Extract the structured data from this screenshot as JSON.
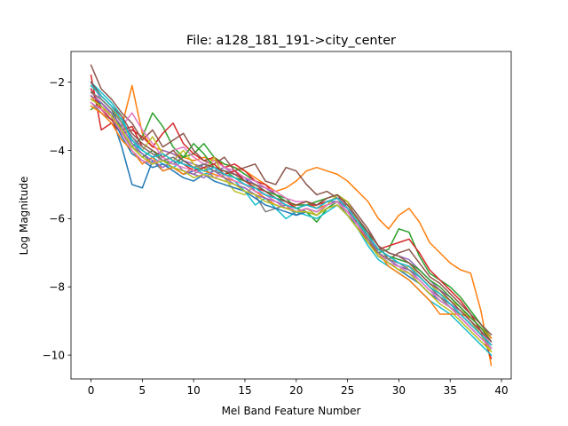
{
  "chart_data": {
    "type": "line",
    "title": "File: a128_181_191->city_center",
    "xlabel": "Mel Band Feature Number",
    "ylabel": "Log Magnitude",
    "xlim": [
      -1.95,
      40.95
    ],
    "ylim": [
      -10.7,
      -1.1
    ],
    "xticks": [
      0,
      5,
      10,
      15,
      20,
      25,
      30,
      35,
      40
    ],
    "xtick_labels": [
      "0",
      "5",
      "10",
      "15",
      "20",
      "25",
      "30",
      "35",
      "40"
    ],
    "yticks": [
      -10,
      -8,
      -6,
      -4,
      -2
    ],
    "ytick_labels": [
      "−10",
      "−8",
      "−6",
      "−4",
      "−2"
    ],
    "grid": false,
    "legend": false,
    "x": [
      0,
      1,
      2,
      3,
      4,
      5,
      6,
      7,
      8,
      9,
      10,
      11,
      12,
      13,
      14,
      15,
      16,
      17,
      18,
      19,
      20,
      21,
      22,
      23,
      24,
      25,
      26,
      27,
      28,
      29,
      30,
      31,
      32,
      33,
      34,
      35,
      36,
      37,
      38,
      39
    ],
    "series": [
      {
        "color": "#1f77b4",
        "values": [
          -2.2,
          -2.7,
          -3.0,
          -3.9,
          -5.0,
          -5.1,
          -4.3,
          -4.6,
          -4.5,
          -4.7,
          -4.6,
          -4.4,
          -4.5,
          -4.6,
          -4.7,
          -4.8,
          -5.2,
          -5.3,
          -5.5,
          -5.6,
          -5.7,
          -5.6,
          -5.6,
          -5.5,
          -5.5,
          -5.8,
          -6.2,
          -6.6,
          -7.1,
          -7.3,
          -7.4,
          -7.6,
          -7.9,
          -8.2,
          -8.4,
          -8.6,
          -8.9,
          -9.2,
          -9.5,
          -9.8
        ]
      },
      {
        "color": "#ff7f0e",
        "values": [
          -2.4,
          -2.8,
          -2.9,
          -3.3,
          -2.1,
          -3.5,
          -3.9,
          -4.0,
          -4.1,
          -4.2,
          -4.3,
          -4.2,
          -4.3,
          -4.4,
          -4.5,
          -4.6,
          -4.8,
          -5.0,
          -5.2,
          -5.1,
          -4.9,
          -4.6,
          -4.5,
          -4.6,
          -4.7,
          -4.9,
          -5.2,
          -5.5,
          -6.0,
          -6.3,
          -5.9,
          -5.7,
          -6.1,
          -6.7,
          -7.0,
          -7.3,
          -7.5,
          -7.6,
          -8.7,
          -10.3
        ]
      },
      {
        "color": "#2ca02c",
        "values": [
          -2.8,
          -2.6,
          -2.9,
          -3.5,
          -3.9,
          -3.6,
          -2.9,
          -3.3,
          -3.9,
          -4.2,
          -4.1,
          -3.8,
          -4.2,
          -4.4,
          -4.5,
          -4.7,
          -4.9,
          -5.1,
          -5.3,
          -5.4,
          -5.7,
          -5.8,
          -6.1,
          -5.7,
          -5.5,
          -5.6,
          -6.0,
          -6.4,
          -7.0,
          -6.9,
          -6.3,
          -6.4,
          -7.1,
          -7.6,
          -7.8,
          -8.0,
          -8.3,
          -8.7,
          -9.1,
          -9.5
        ]
      },
      {
        "color": "#d62728",
        "values": [
          -1.8,
          -3.4,
          -3.2,
          -3.5,
          -3.4,
          -3.6,
          -3.9,
          -3.5,
          -3.2,
          -3.8,
          -4.1,
          -4.3,
          -4.2,
          -4.5,
          -4.4,
          -4.6,
          -4.9,
          -5.0,
          -5.3,
          -5.5,
          -5.6,
          -5.5,
          -5.6,
          -5.4,
          -5.3,
          -5.7,
          -6.1,
          -6.6,
          -6.9,
          -6.8,
          -6.7,
          -6.6,
          -7.0,
          -7.5,
          -7.8,
          -8.1,
          -8.4,
          -8.8,
          -9.3,
          -10.1
        ]
      },
      {
        "color": "#9467bd",
        "values": [
          -2.0,
          -2.5,
          -2.8,
          -3.1,
          -3.6,
          -4.0,
          -4.2,
          -4.0,
          -4.1,
          -4.3,
          -4.4,
          -4.5,
          -4.6,
          -4.5,
          -4.7,
          -4.8,
          -5.0,
          -5.1,
          -5.3,
          -5.5,
          -5.6,
          -5.6,
          -5.7,
          -5.6,
          -5.5,
          -5.7,
          -6.0,
          -6.4,
          -6.8,
          -7.0,
          -7.1,
          -7.2,
          -7.5,
          -7.8,
          -8.1,
          -8.3,
          -8.6,
          -8.9,
          -9.2,
          -9.6
        ]
      },
      {
        "color": "#8c564b",
        "values": [
          -1.5,
          -2.2,
          -2.5,
          -2.9,
          -3.2,
          -3.7,
          -3.4,
          -3.9,
          -3.7,
          -3.5,
          -4.0,
          -4.3,
          -4.4,
          -4.2,
          -4.6,
          -4.5,
          -4.4,
          -4.9,
          -5.0,
          -4.5,
          -4.6,
          -5.0,
          -5.3,
          -5.2,
          -5.4,
          -5.5,
          -5.9,
          -6.3,
          -6.8,
          -7.2,
          -7.0,
          -6.9,
          -7.3,
          -7.7,
          -7.9,
          -8.2,
          -8.5,
          -8.8,
          -9.1,
          -9.4
        ]
      },
      {
        "color": "#e377c2",
        "values": [
          -2.3,
          -2.6,
          -3.0,
          -3.3,
          -2.9,
          -3.4,
          -3.8,
          -4.2,
          -4.0,
          -3.9,
          -4.2,
          -4.4,
          -4.3,
          -4.5,
          -4.6,
          -4.8,
          -4.9,
          -5.1,
          -5.2,
          -5.4,
          -5.5,
          -5.5,
          -5.6,
          -5.5,
          -5.4,
          -5.6,
          -6.0,
          -6.5,
          -6.9,
          -7.1,
          -7.2,
          -7.3,
          -7.6,
          -7.9,
          -8.2,
          -8.5,
          -8.7,
          -9.0,
          -9.3,
          -9.7
        ]
      },
      {
        "color": "#7f7f7f",
        "values": [
          -2.6,
          -2.9,
          -3.1,
          -3.5,
          -3.9,
          -4.1,
          -4.4,
          -4.3,
          -4.5,
          -4.6,
          -4.7,
          -4.5,
          -4.8,
          -4.9,
          -5.0,
          -5.1,
          -5.3,
          -5.8,
          -5.7,
          -5.6,
          -5.9,
          -5.7,
          -5.8,
          -5.6,
          -5.5,
          -5.9,
          -6.3,
          -6.7,
          -7.0,
          -7.3,
          -7.4,
          -7.5,
          -7.7,
          -8.0,
          -8.3,
          -8.6,
          -8.8,
          -9.1,
          -9.4,
          -9.8
        ]
      },
      {
        "color": "#bcbd22",
        "values": [
          -2.1,
          -2.4,
          -2.7,
          -3.2,
          -3.7,
          -4.0,
          -3.6,
          -4.1,
          -4.3,
          -4.0,
          -4.4,
          -4.6,
          -4.2,
          -4.8,
          -5.2,
          -5.3,
          -5.0,
          -5.2,
          -5.4,
          -5.6,
          -5.8,
          -5.7,
          -5.9,
          -5.6,
          -5.3,
          -5.5,
          -6.1,
          -6.5,
          -7.1,
          -7.3,
          -7.5,
          -7.4,
          -7.6,
          -7.9,
          -8.2,
          -8.4,
          -8.6,
          -9.0,
          -9.4,
          -9.9
        ]
      },
      {
        "color": "#17becf",
        "values": [
          -2.0,
          -2.3,
          -2.6,
          -3.0,
          -3.8,
          -4.0,
          -4.2,
          -4.4,
          -4.5,
          -4.3,
          -4.5,
          -4.7,
          -4.6,
          -4.8,
          -4.9,
          -5.2,
          -5.6,
          -5.4,
          -5.7,
          -6.0,
          -5.8,
          -5.9,
          -6.0,
          -5.8,
          -5.6,
          -5.9,
          -6.3,
          -6.8,
          -7.2,
          -7.4,
          -7.6,
          -7.8,
          -8.1,
          -8.4,
          -8.6,
          -8.8,
          -9.1,
          -9.4,
          -9.7,
          -10.0
        ]
      },
      {
        "color": "#1f77b4",
        "values": [
          -2.5,
          -2.7,
          -3.0,
          -3.6,
          -4.1,
          -4.3,
          -4.5,
          -4.4,
          -4.6,
          -4.8,
          -4.9,
          -4.7,
          -4.9,
          -5.0,
          -5.1,
          -5.2,
          -5.4,
          -5.6,
          -5.7,
          -5.8,
          -5.9,
          -5.8,
          -5.9,
          -5.7,
          -5.6,
          -5.9,
          -6.2,
          -6.7,
          -7.1,
          -7.3,
          -7.5,
          -7.7,
          -7.9,
          -8.2,
          -8.4,
          -8.6,
          -8.9,
          -9.2,
          -9.5,
          -9.8
        ]
      },
      {
        "color": "#ff7f0e",
        "values": [
          -2.7,
          -2.9,
          -3.2,
          -3.7,
          -4.0,
          -4.4,
          -4.2,
          -4.6,
          -4.5,
          -4.7,
          -4.5,
          -4.6,
          -4.7,
          -4.8,
          -4.9,
          -5.0,
          -5.2,
          -5.4,
          -5.6,
          -5.7,
          -5.6,
          -5.5,
          -5.7,
          -5.6,
          -5.5,
          -5.8,
          -6.1,
          -6.6,
          -7.0,
          -7.4,
          -7.6,
          -7.8,
          -8.1,
          -8.4,
          -8.8,
          -8.8,
          -8.8,
          -8.9,
          -9.2,
          -9.5
        ]
      },
      {
        "color": "#2ca02c",
        "values": [
          -2.3,
          -2.5,
          -2.8,
          -3.4,
          -3.9,
          -4.2,
          -4.0,
          -4.3,
          -4.4,
          -4.2,
          -3.8,
          -4.1,
          -4.5,
          -4.6,
          -4.8,
          -4.9,
          -5.0,
          -5.2,
          -5.3,
          -5.5,
          -5.6,
          -5.6,
          -5.5,
          -5.4,
          -5.3,
          -5.6,
          -6.0,
          -6.5,
          -6.9,
          -7.1,
          -7.2,
          -7.3,
          -7.5,
          -7.8,
          -8.0,
          -8.3,
          -8.6,
          -8.9,
          -9.2,
          -9.6
        ]
      },
      {
        "color": "#d62728",
        "values": [
          -2.2,
          -2.8,
          -3.1,
          -3.4,
          -3.3,
          -3.9,
          -4.1,
          -4.3,
          -4.2,
          -4.4,
          -4.6,
          -4.5,
          -4.4,
          -4.7,
          -4.6,
          -4.9,
          -5.1,
          -5.2,
          -5.4,
          -5.5,
          -5.7,
          -5.6,
          -5.6,
          -5.5,
          -5.4,
          -5.7,
          -6.2,
          -6.7,
          -7.0,
          -7.2,
          -7.3,
          -7.4,
          -7.7,
          -8.0,
          -8.3,
          -8.5,
          -8.8,
          -9.1,
          -9.4,
          -9.7
        ]
      },
      {
        "color": "#9467bd",
        "values": [
          -2.4,
          -2.6,
          -2.9,
          -3.3,
          -3.8,
          -4.1,
          -4.3,
          -4.5,
          -4.3,
          -4.6,
          -4.7,
          -4.8,
          -4.6,
          -4.8,
          -5.0,
          -5.1,
          -5.3,
          -5.4,
          -5.5,
          -5.7,
          -5.8,
          -5.7,
          -5.8,
          -5.6,
          -5.5,
          -5.8,
          -6.1,
          -6.5,
          -7.0,
          -7.2,
          -7.4,
          -7.5,
          -7.8,
          -8.1,
          -8.3,
          -8.5,
          -8.7,
          -9.0,
          -9.3,
          -9.6
        ]
      },
      {
        "color": "#8c564b",
        "values": [
          -2.0,
          -2.4,
          -2.7,
          -3.0,
          -3.5,
          -3.8,
          -4.0,
          -4.2,
          -4.0,
          -4.3,
          -4.5,
          -4.4,
          -4.5,
          -4.6,
          -4.7,
          -4.9,
          -5.0,
          -5.2,
          -5.4,
          -5.5,
          -5.6,
          -5.5,
          -5.6,
          -5.4,
          -5.3,
          -5.6,
          -6.0,
          -6.4,
          -6.8,
          -7.0,
          -7.1,
          -7.3,
          -7.6,
          -7.9,
          -8.1,
          -8.4,
          -8.7,
          -9.0,
          -9.3,
          -9.6
        ]
      },
      {
        "color": "#e377c2",
        "values": [
          -2.6,
          -2.8,
          -3.0,
          -3.5,
          -4.0,
          -4.3,
          -4.4,
          -4.2,
          -4.4,
          -4.5,
          -4.6,
          -4.7,
          -4.8,
          -4.7,
          -4.9,
          -5.0,
          -5.2,
          -5.3,
          -5.5,
          -5.6,
          -5.8,
          -5.7,
          -5.8,
          -5.6,
          -5.5,
          -5.8,
          -6.2,
          -6.6,
          -7.0,
          -7.3,
          -7.4,
          -7.6,
          -7.8,
          -8.1,
          -8.4,
          -8.6,
          -8.9,
          -9.2,
          -9.5,
          -9.8
        ]
      },
      {
        "color": "#7f7f7f",
        "values": [
          -2.3,
          -2.5,
          -2.8,
          -3.2,
          -3.6,
          -3.9,
          -4.1,
          -4.3,
          -4.2,
          -4.4,
          -4.5,
          -4.4,
          -4.6,
          -4.7,
          -4.8,
          -5.0,
          -5.1,
          -5.3,
          -5.4,
          -5.6,
          -5.7,
          -5.6,
          -5.7,
          -5.5,
          -5.4,
          -5.7,
          -6.1,
          -6.6,
          -7.0,
          -7.2,
          -7.3,
          -7.5,
          -7.7,
          -8.0,
          -8.3,
          -8.5,
          -8.8,
          -9.1,
          -9.4,
          -9.7
        ]
      },
      {
        "color": "#bcbd22",
        "values": [
          -2.5,
          -2.7,
          -3.0,
          -3.4,
          -3.9,
          -4.2,
          -4.4,
          -4.3,
          -4.5,
          -4.6,
          -4.8,
          -4.7,
          -4.8,
          -4.9,
          -5.0,
          -5.2,
          -5.3,
          -5.5,
          -5.6,
          -5.7,
          -5.8,
          -5.8,
          -5.9,
          -5.7,
          -5.6,
          -5.9,
          -6.3,
          -6.7,
          -7.1,
          -7.3,
          -7.5,
          -7.6,
          -7.9,
          -8.2,
          -8.5,
          -8.7,
          -9.0,
          -9.3,
          -9.6,
          -9.9
        ]
      },
      {
        "color": "#17becf",
        "values": [
          -2.1,
          -2.4,
          -2.7,
          -3.1,
          -3.7,
          -4.0,
          -4.2,
          -4.1,
          -4.3,
          -4.4,
          -4.5,
          -4.6,
          -4.5,
          -4.7,
          -4.8,
          -5.0,
          -5.1,
          -5.3,
          -5.4,
          -5.6,
          -5.7,
          -5.6,
          -5.7,
          -5.5,
          -5.4,
          -5.7,
          -6.1,
          -6.5,
          -6.9,
          -7.1,
          -7.3,
          -7.4,
          -7.7,
          -8.0,
          -8.2,
          -8.5,
          -8.8,
          -9.1,
          -9.4,
          -9.7
        ]
      }
    ]
  }
}
